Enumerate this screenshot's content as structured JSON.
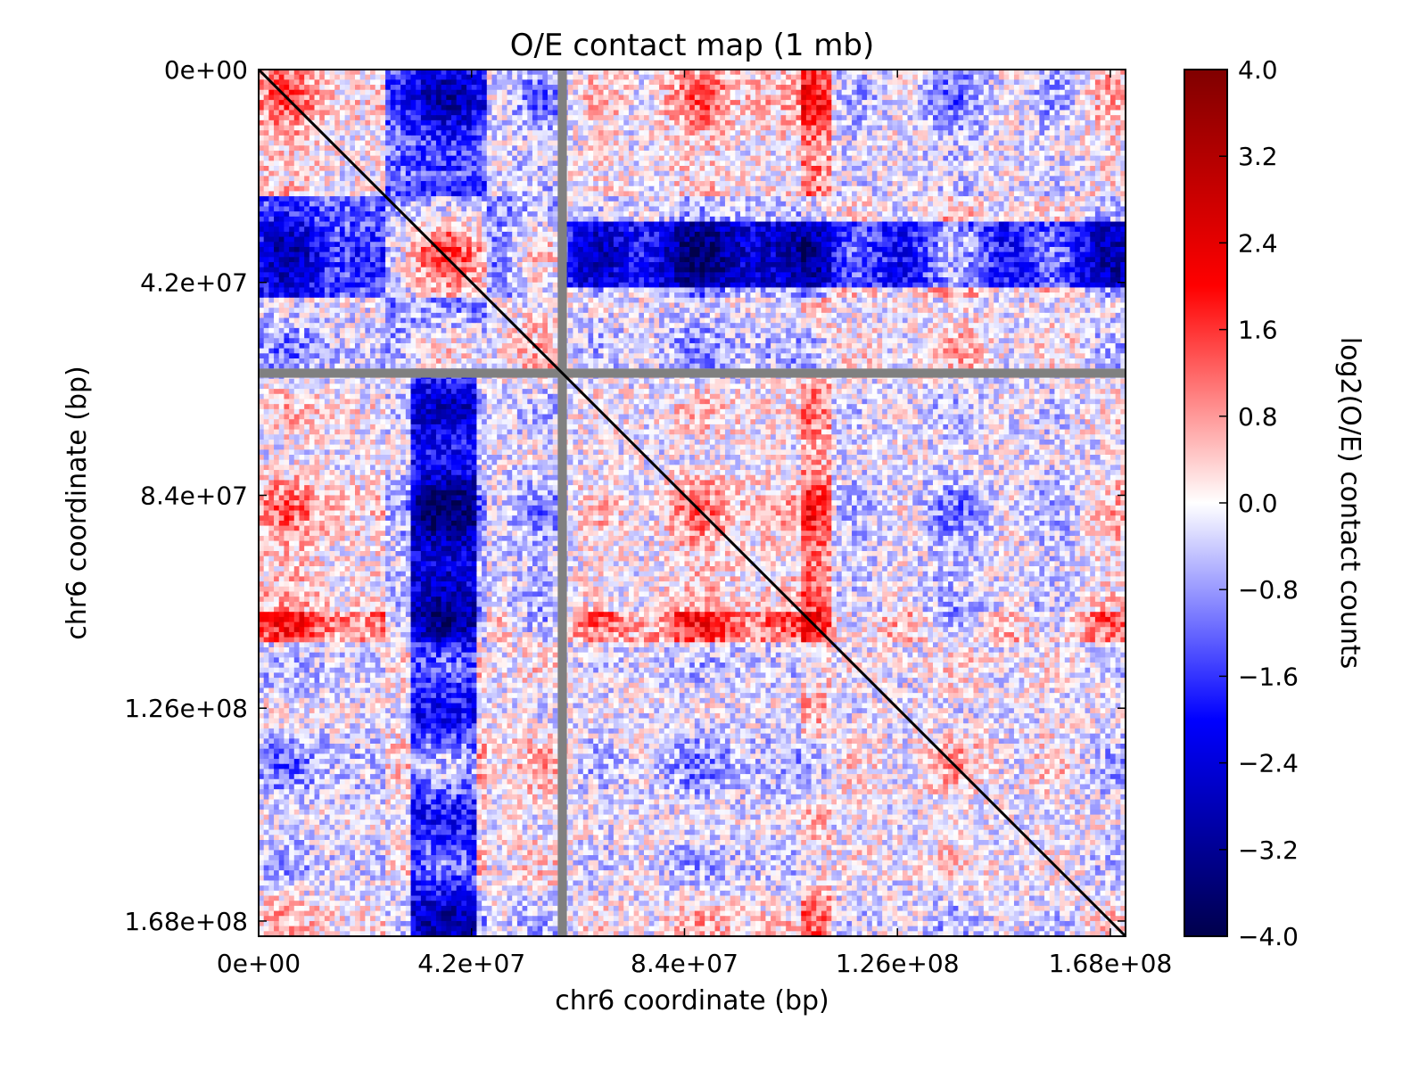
{
  "chart_data": {
    "type": "heatmap",
    "title": "O/E contact map (1 mb)",
    "xlabel": "chr6 coordinate (bp)",
    "ylabel": "chr6 coordinate (bp)",
    "xlim": [
      0,
      171000000
    ],
    "ylim": [
      171000000,
      0
    ],
    "x_ticks": [
      0,
      42000000,
      84000000,
      126000000,
      168000000
    ],
    "x_tick_labels": [
      "0e+00",
      "4.2e+07",
      "8.4e+07",
      "1.26e+08",
      "1.68e+08"
    ],
    "y_ticks": [
      0,
      42000000,
      84000000,
      126000000,
      168000000
    ],
    "y_tick_labels": [
      "0e+00",
      "4.2e+07",
      "8.4e+07",
      "1.26e+08",
      "1.68e+08"
    ],
    "bin_size_bp": 1000000,
    "n_bins": 171,
    "diagonal_value": "black",
    "masked_bins_bp": [
      59000000
    ],
    "masked_color": "#808080",
    "grid": false,
    "colorbar": {
      "label": "log2(O/E) contact counts",
      "min": -4.0,
      "max": 4.0,
      "ticks": [
        4.0,
        3.2,
        2.4,
        1.6,
        0.8,
        0.0,
        -0.8,
        -1.6,
        -2.4,
        -3.2,
        -4.0
      ],
      "tick_labels": [
        "4.0",
        "3.2",
        "2.4",
        "1.6",
        "0.8",
        "0.0",
        "−0.8",
        "−1.6",
        "−2.4",
        "−3.2",
        "−4.0"
      ],
      "colormap": "seismic",
      "stops": [
        "#00004c",
        "#0000ff",
        "#ffffff",
        "#ff0000",
        "#800000"
      ]
    },
    "bands": {
      "depleted_regions_bp": [
        [
          25000000,
          45000000
        ],
        [
          31000000,
          42000000
        ],
        [
          59000000,
          100000000
        ]
      ],
      "enriched_regions_bp": [
        [
          107000000,
          112000000
        ],
        [
          0,
          20000000
        ]
      ]
    }
  }
}
